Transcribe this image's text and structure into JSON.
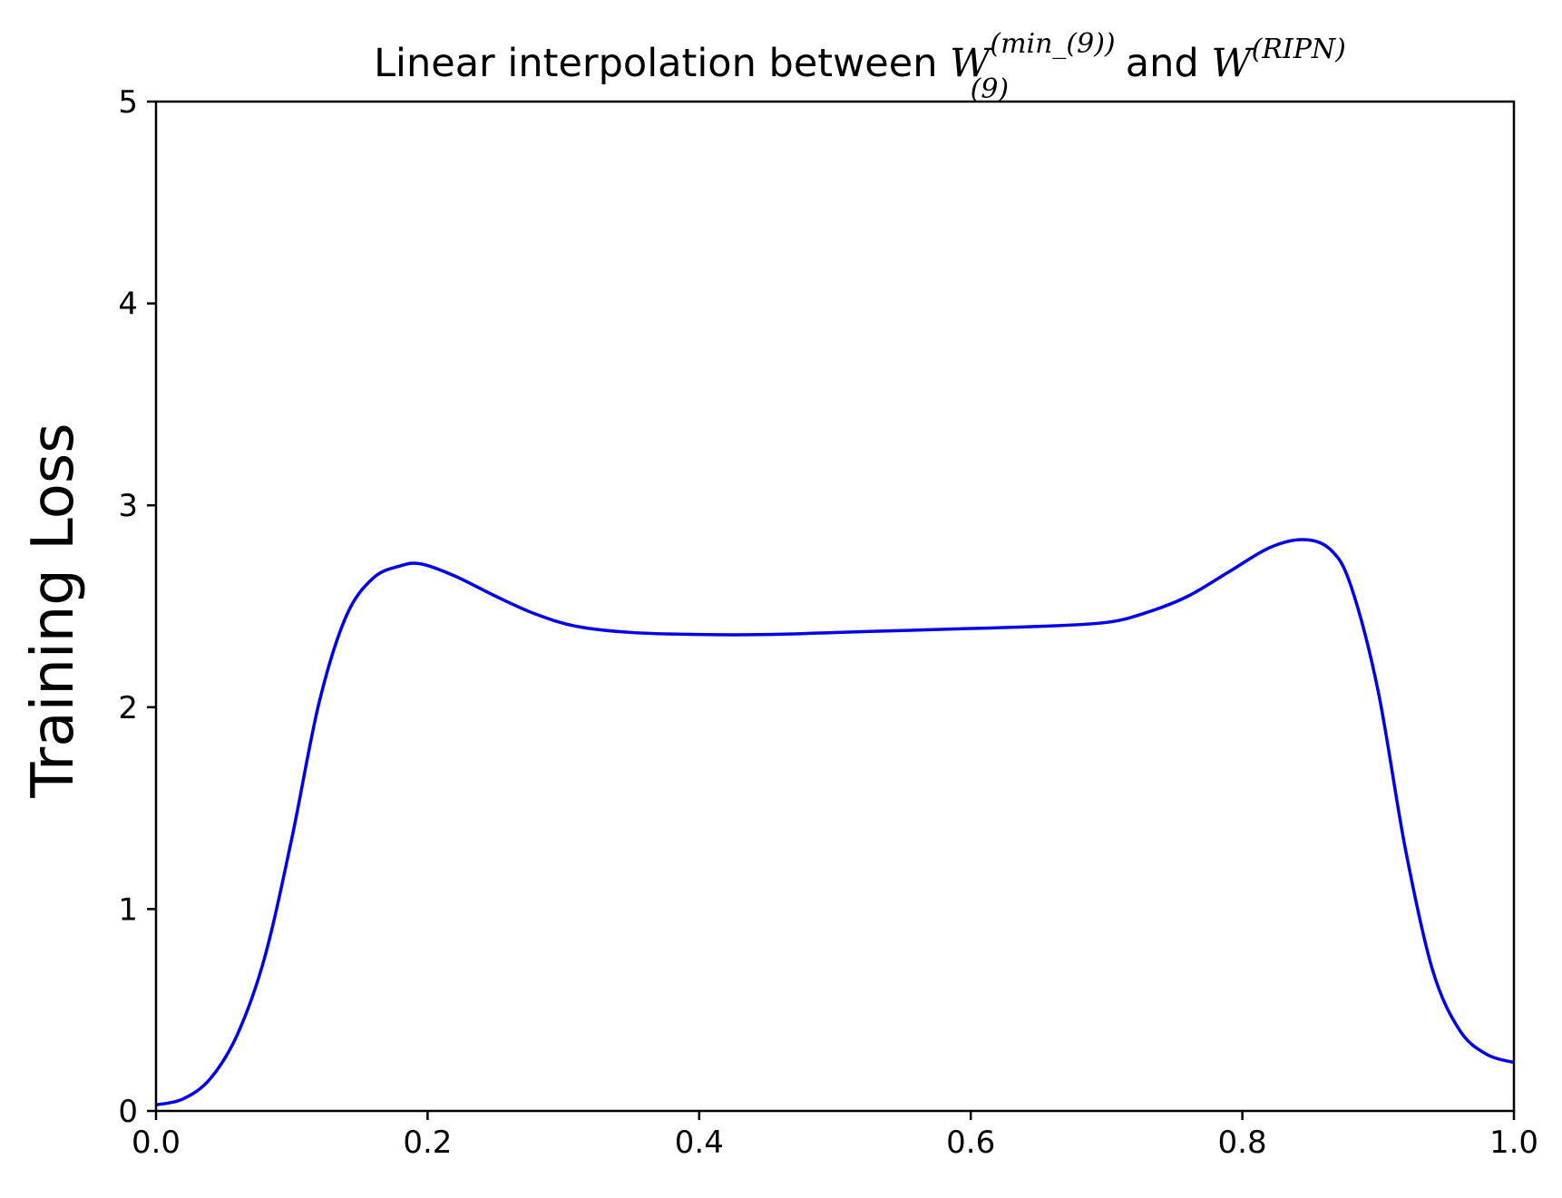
{
  "chart_data": {
    "type": "line",
    "title": {
      "prefix": "Linear interpolation between ",
      "w1_base": "W",
      "w1_sup": "(min_(9))",
      "w1_sub": "(9)",
      "middle": " and ",
      "w2_base": "W",
      "w2_sup": "(RIPN)"
    },
    "xlabel": "",
    "ylabel": "Training Loss",
    "xlim": [
      0.0,
      1.0
    ],
    "ylim": [
      0,
      5
    ],
    "x_ticks": [
      "0.0",
      "0.2",
      "0.4",
      "0.6",
      "0.8",
      "1.0"
    ],
    "y_ticks": [
      "0",
      "1",
      "2",
      "3",
      "4",
      "5"
    ],
    "grid": false,
    "series": [
      {
        "color": "#0000ee",
        "x": [
          0.0,
          0.02,
          0.04,
          0.06,
          0.08,
          0.1,
          0.12,
          0.14,
          0.16,
          0.18,
          0.195,
          0.22,
          0.25,
          0.28,
          0.31,
          0.35,
          0.4,
          0.45,
          0.5,
          0.55,
          0.6,
          0.65,
          0.7,
          0.73,
          0.76,
          0.79,
          0.82,
          0.845,
          0.865,
          0.88,
          0.9,
          0.92,
          0.94,
          0.96,
          0.98,
          1.0
        ],
        "y": [
          0.03,
          0.06,
          0.16,
          0.38,
          0.76,
          1.35,
          2.02,
          2.45,
          2.64,
          2.7,
          2.71,
          2.65,
          2.55,
          2.46,
          2.4,
          2.37,
          2.36,
          2.36,
          2.37,
          2.38,
          2.39,
          2.4,
          2.42,
          2.47,
          2.55,
          2.67,
          2.79,
          2.83,
          2.78,
          2.6,
          2.08,
          1.3,
          0.7,
          0.4,
          0.28,
          0.24
        ]
      }
    ]
  }
}
